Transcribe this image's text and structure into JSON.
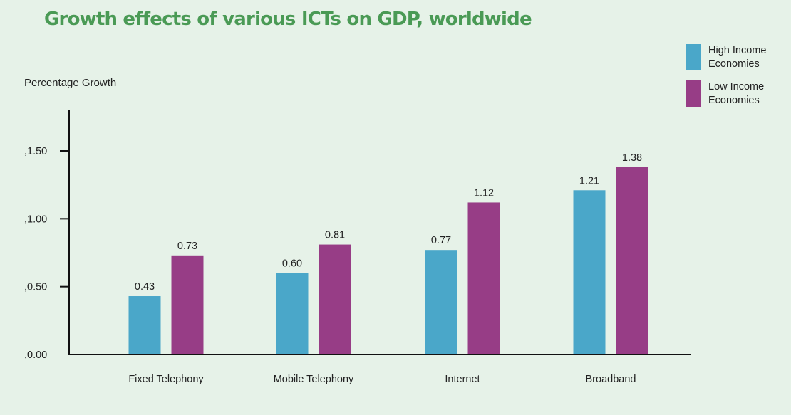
{
  "chart_data": {
    "type": "bar",
    "title": "Growth effects of various ICTs on GDP, worldwide",
    "ylabel": "Percentage Growth",
    "xlabel": "",
    "categories": [
      "Fixed Telephony",
      "Mobile Telephony",
      "Internet",
      "Broadband"
    ],
    "series": [
      {
        "name": "High Income Economies",
        "color": "#4aa7c9",
        "values": [
          0.43,
          0.6,
          0.77,
          1.21
        ],
        "labels": [
          "0.43",
          "0.60",
          "0.77",
          "1.21"
        ]
      },
      {
        "name": "Low Income Economies",
        "color": "#973d86",
        "values": [
          0.73,
          0.81,
          1.12,
          1.38
        ],
        "labels": [
          "0.73",
          "0.81",
          "1.12",
          "1.38"
        ]
      }
    ],
    "yticks": [
      0,
      0.5,
      1.0,
      1.5
    ],
    "ytick_labels": [
      ",0.00",
      ",0.50",
      ",1.00",
      ",1.50"
    ],
    "ylim": [
      0,
      1.8
    ],
    "grid": false,
    "legend_position": "top-right"
  },
  "legend": {
    "high_line1": "High Income",
    "high_line2": "Economies",
    "low_line1": "Low Income",
    "low_line2": "Economies"
  }
}
